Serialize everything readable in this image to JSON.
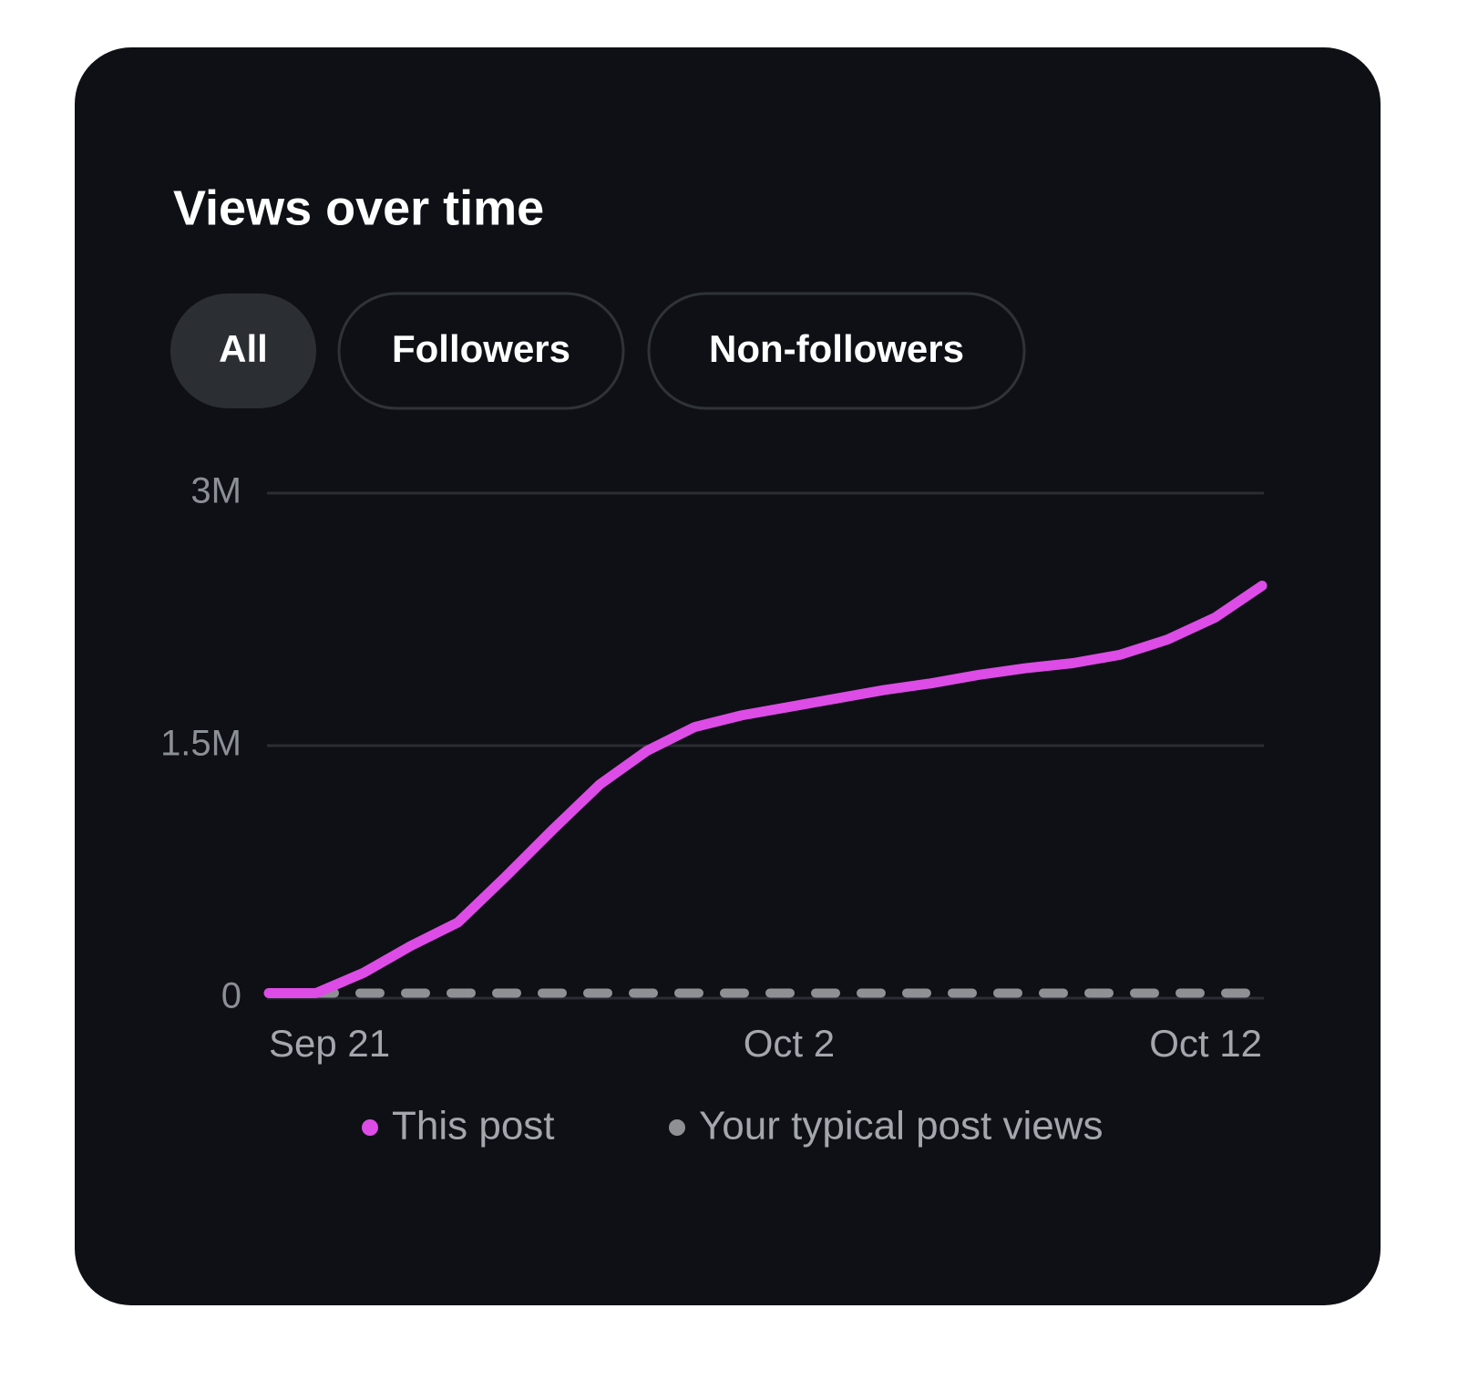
{
  "chart_data": {
    "type": "line",
    "title": "Views over time",
    "tabs": [
      "All",
      "Followers",
      "Non-followers"
    ],
    "active_tab": 0,
    "categories": [
      "Sep 21",
      null,
      null,
      null,
      null,
      null,
      null,
      null,
      null,
      null,
      null,
      "Oct 2",
      null,
      null,
      null,
      null,
      null,
      null,
      null,
      null,
      null,
      "Oct 12"
    ],
    "series": [
      {
        "name": "This post",
        "color": "#dd4ce6",
        "dashed": false,
        "values": [
          30000,
          30000,
          150000,
          310000,
          450000,
          720000,
          1000000,
          1270000,
          1470000,
          1610000,
          1680000,
          1730000,
          1780000,
          1830000,
          1870000,
          1920000,
          1960000,
          1990000,
          2040000,
          2130000,
          2260000,
          2450000
        ]
      },
      {
        "name": "Your typical post views",
        "color": "#8e9094",
        "dashed": true,
        "values": [
          30000,
          30000,
          30000,
          30000,
          30000,
          30000,
          30000,
          30000,
          30000,
          30000,
          30000,
          30000,
          30000,
          30000,
          30000,
          30000,
          30000,
          30000,
          30000,
          30000,
          30000,
          30000
        ]
      }
    ],
    "ylim": [
      0,
      3000000
    ],
    "yticks": [
      0,
      {
        "value": 1500000,
        "label": "1.5M"
      },
      {
        "value": 3000000,
        "label": "3M"
      }
    ],
    "grid": true,
    "legend": "bottom"
  }
}
